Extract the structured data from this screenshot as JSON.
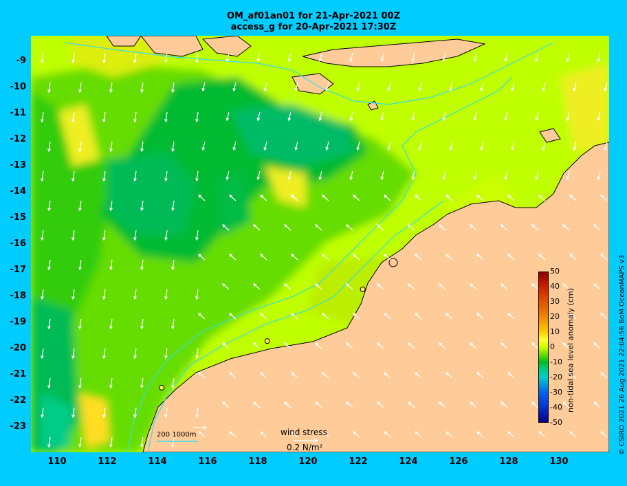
{
  "title": {
    "line1": "OM_af01an01 for 21-Apr-2021 00Z",
    "line2": "access_g for 20-Apr-2021 17:30Z"
  },
  "axes": {
    "x_ticks": [
      "110",
      "112",
      "114",
      "116",
      "118",
      "120",
      "122",
      "124",
      "126",
      "128",
      "130"
    ],
    "y_ticks": [
      "-9",
      "-10",
      "-11",
      "-12",
      "-13",
      "-14",
      "-15",
      "-16",
      "-17",
      "-18",
      "-19",
      "-20",
      "-21",
      "-22",
      "-23"
    ],
    "lon_range": [
      109,
      132
    ],
    "lat_range": [
      -24.3,
      -8.2
    ]
  },
  "colorbar": {
    "label": "non-tidal sea level anomaly (cm)",
    "ticks": [
      "50",
      "40",
      "30",
      "20",
      "10",
      "0",
      "-10",
      "-20",
      "-30",
      "-40",
      "-50"
    ],
    "range": [
      -50,
      50
    ]
  },
  "legend": {
    "scale": "200  1000m",
    "wind_title": "wind stress",
    "wind_value": "0.2 N/m²"
  },
  "credit": "© CSIRO 2021   26 Aug 2021 22:04:56 BoM OceanMAPS v3",
  "colors": {
    "background": "#00ccff",
    "land": "#ffcc99",
    "isobath": "#33ddee"
  },
  "stations": [
    {
      "lon": 114.2,
      "lat": -21.8
    },
    {
      "lon": 118.4,
      "lat": -20.0
    },
    {
      "lon": 122.2,
      "lat": -18.0
    }
  ]
}
